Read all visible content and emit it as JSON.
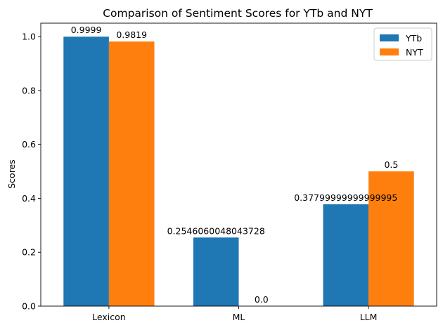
{
  "chart_data": {
    "type": "bar",
    "title": "Comparison of Sentiment Scores for YTb and NYT",
    "xlabel": "",
    "ylabel": "Scores",
    "categories": [
      "Lexicon",
      "ML",
      "LLM"
    ],
    "series": [
      {
        "name": "YTb",
        "color": "#1f77b4",
        "values": [
          0.9999,
          0.2546060048043728,
          0.37799999999999995
        ],
        "labels": [
          "0.9999",
          "0.2546060048043728",
          "0.37799999999999995"
        ]
      },
      {
        "name": "NYT",
        "color": "#ff7f0e",
        "values": [
          0.9819,
          0.0,
          0.5
        ],
        "labels": [
          "0.9819",
          "0.0",
          "0.5"
        ]
      }
    ],
    "ylim": [
      0,
      1.05
    ],
    "yticks": [
      0.0,
      0.2,
      0.4,
      0.6,
      0.8,
      1.0
    ],
    "ytick_labels": [
      "0.0",
      "0.2",
      "0.4",
      "0.6",
      "0.8",
      "1.0"
    ],
    "grid": false,
    "legend_position": "top-right"
  }
}
